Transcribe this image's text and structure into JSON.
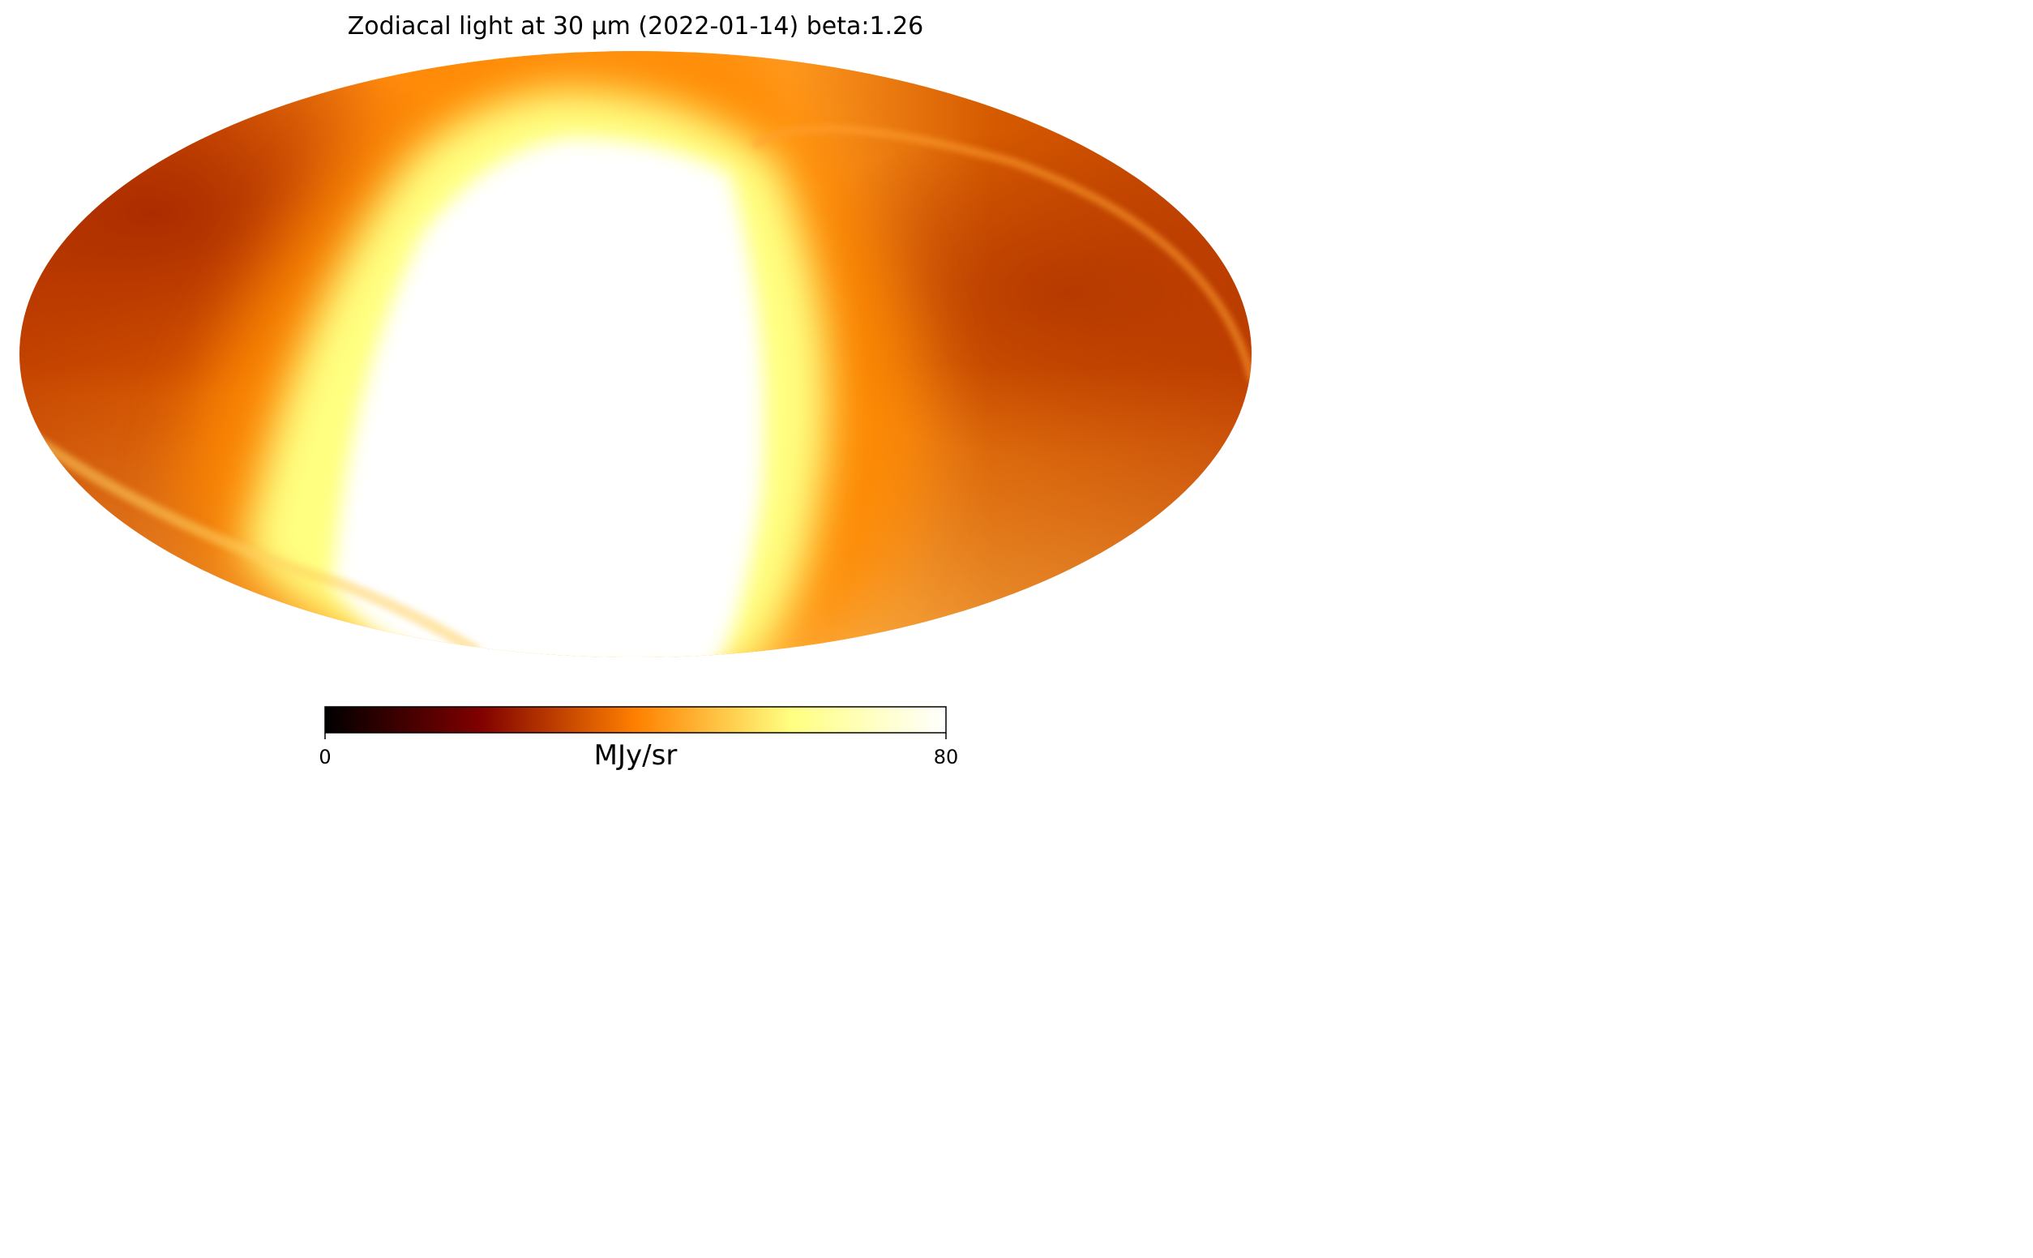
{
  "chart_data": {
    "type": "heatmap",
    "projection": "mollweide",
    "title": "Zodiacal light at 30 μm (2022-01-14) beta:1.26",
    "colormap": "afmhot",
    "colorbar": {
      "min": 0,
      "max": 80,
      "label": "MJy/sr",
      "ticks": [
        "0",
        "80"
      ],
      "stops": [
        "#000000",
        "#800000",
        "#ff8000",
        "#ffff80",
        "#ffffff"
      ]
    },
    "grid": false,
    "features": [
      {
        "name": "saturated zodiacal band",
        "value_min": 80
      },
      {
        "name": "background level",
        "value_approx": 40
      }
    ]
  }
}
